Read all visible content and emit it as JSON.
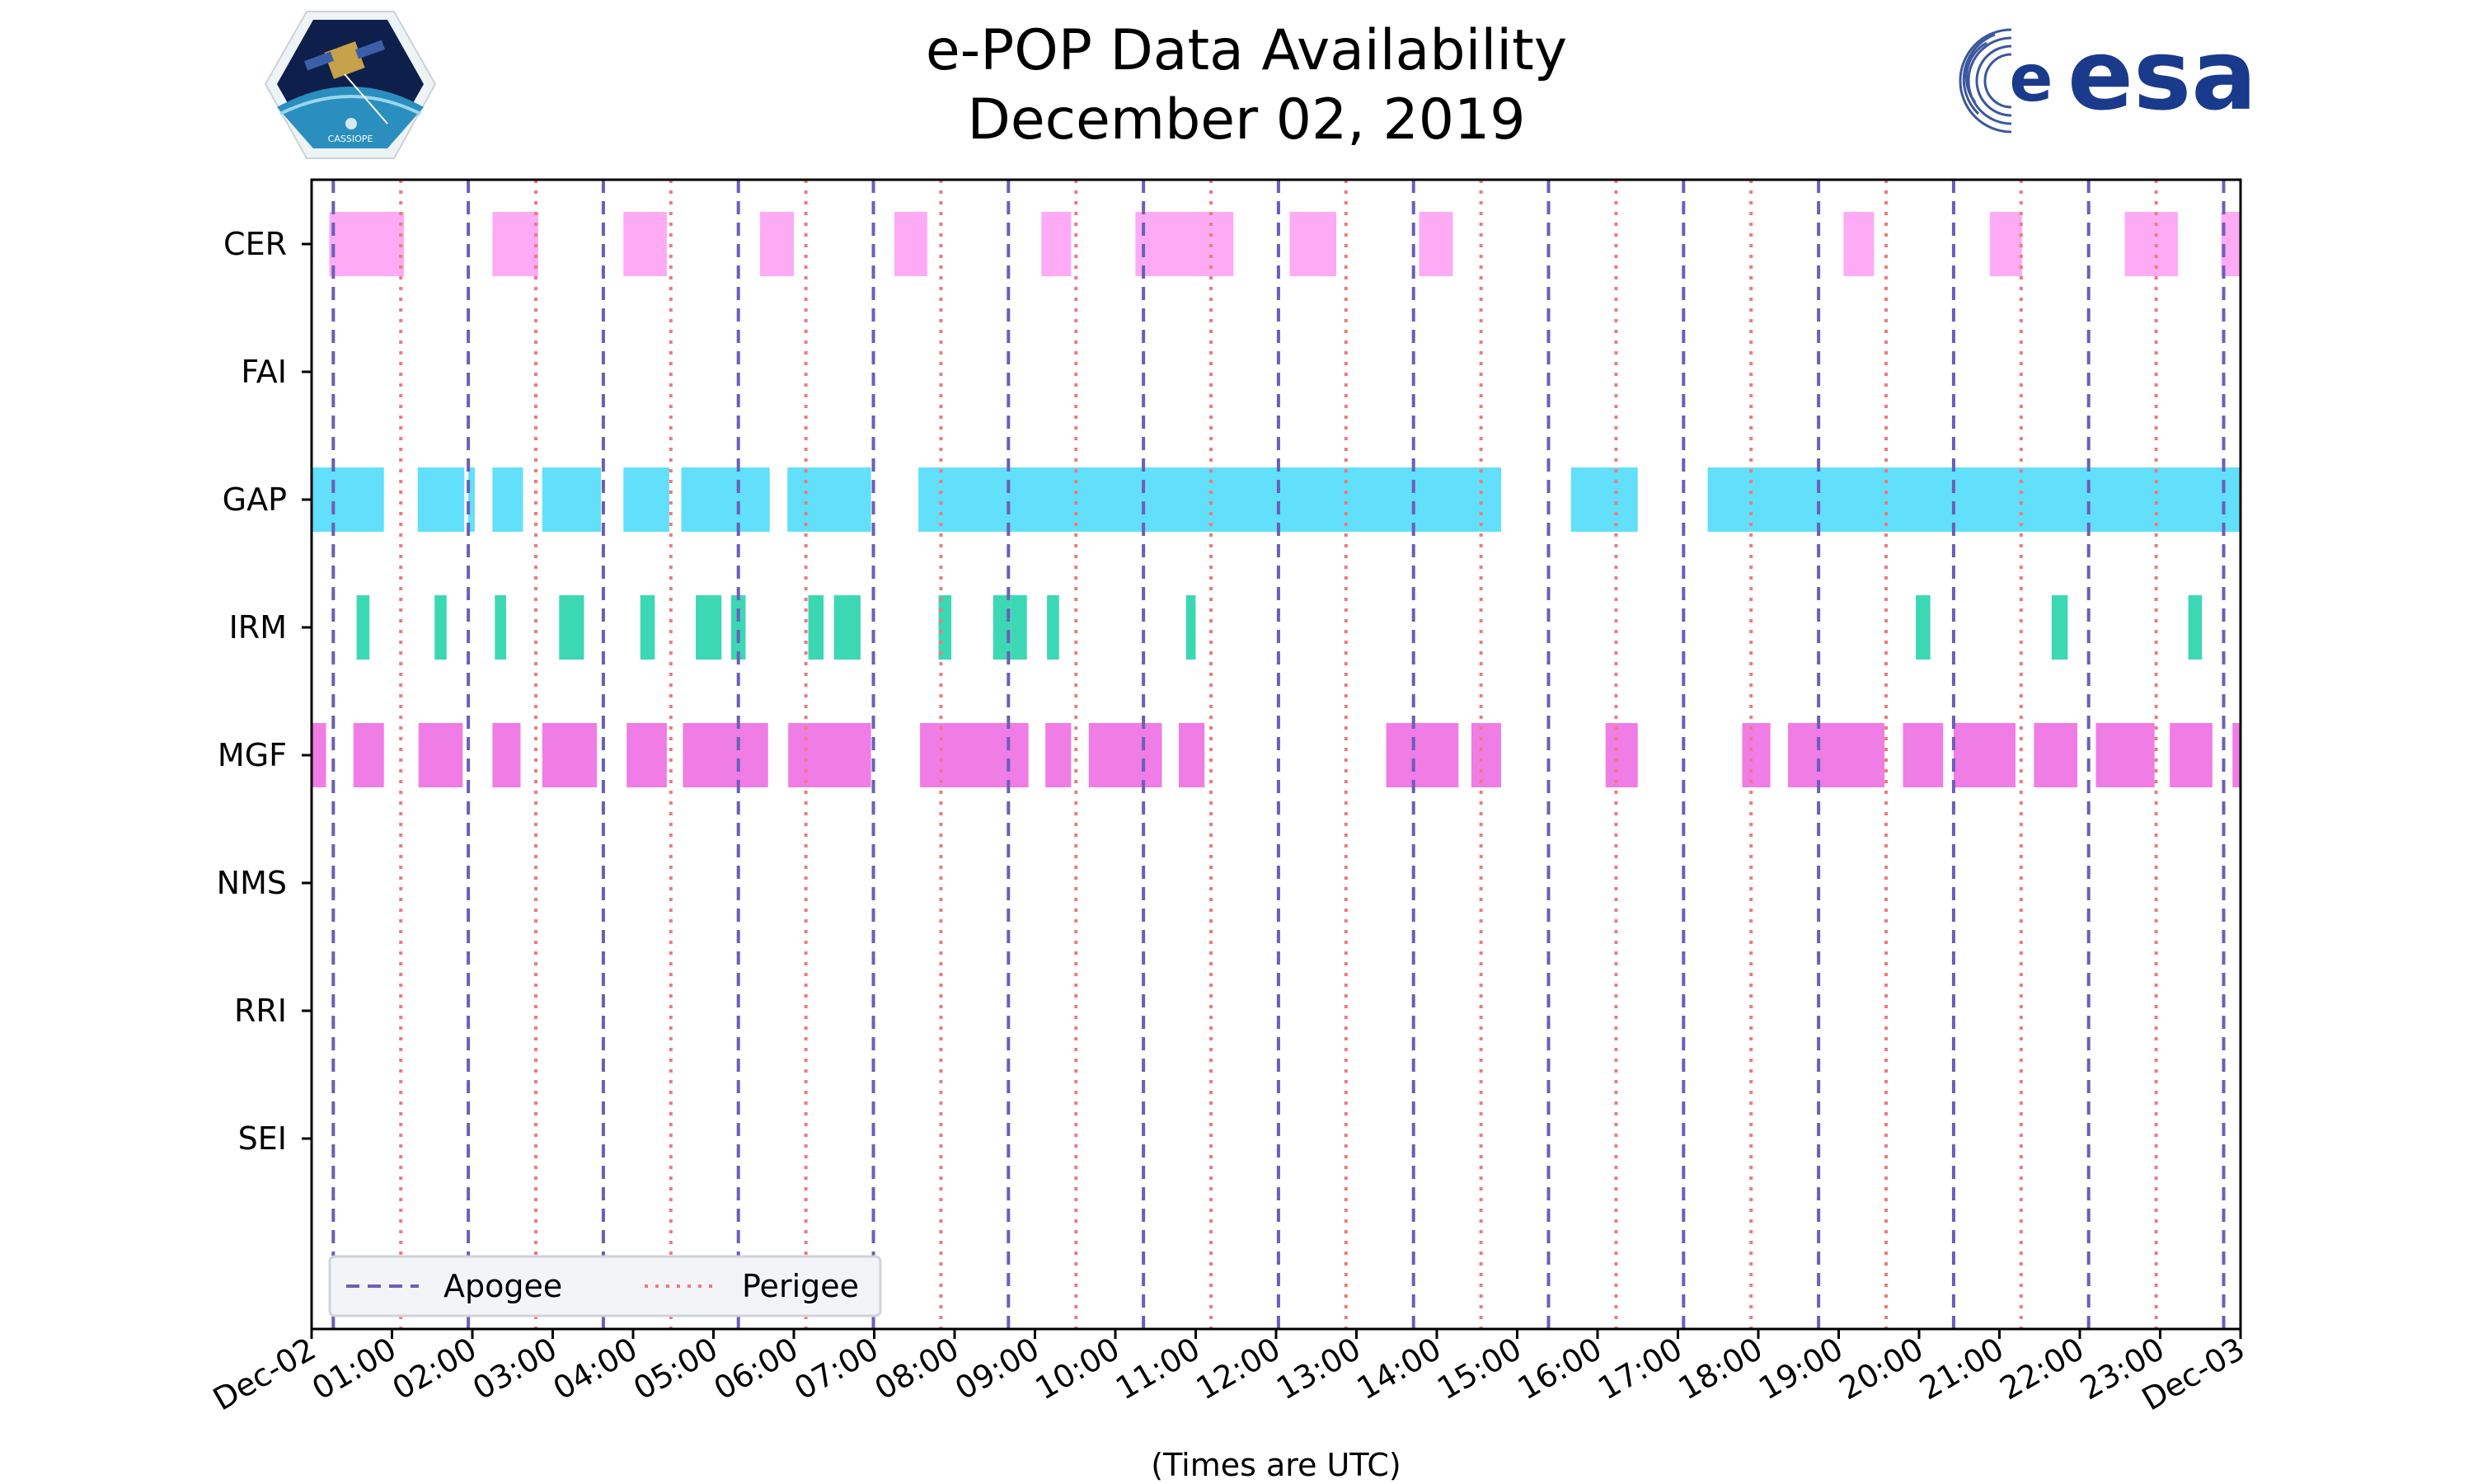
{
  "chart_data": {
    "type": "timeline",
    "title": "e-POP Data Availability",
    "subtitle": "December 02, 2019",
    "xlabel": "(Times are UTC)",
    "x_unit": "hours UTC",
    "xlim": [
      0,
      24
    ],
    "x_tick_labels": [
      "Dec-02",
      "01:00",
      "02:00",
      "03:00",
      "04:00",
      "05:00",
      "06:00",
      "07:00",
      "08:00",
      "09:00",
      "10:00",
      "11:00",
      "12:00",
      "13:00",
      "14:00",
      "15:00",
      "16:00",
      "17:00",
      "18:00",
      "19:00",
      "20:00",
      "21:00",
      "22:00",
      "23:00",
      "Dec-03"
    ],
    "categories": [
      "CER",
      "FAI",
      "GAP",
      "IRM",
      "MGF",
      "NMS",
      "RRI",
      "SEI"
    ],
    "series": [
      {
        "name": "CER",
        "color": "#ffaaf5",
        "intervals": [
          [
            0.22,
            1.15
          ],
          [
            2.25,
            2.82
          ],
          [
            3.88,
            4.42
          ],
          [
            5.58,
            6.0
          ],
          [
            7.25,
            7.66
          ],
          [
            9.08,
            9.45
          ],
          [
            10.25,
            11.47
          ],
          [
            12.17,
            12.75
          ],
          [
            13.78,
            14.2
          ],
          [
            19.06,
            19.44
          ],
          [
            20.88,
            21.28
          ],
          [
            22.56,
            23.22
          ],
          [
            23.76,
            24.0
          ]
        ]
      },
      {
        "name": "FAI",
        "color": "#dddddd",
        "intervals": []
      },
      {
        "name": "GAP",
        "color": "#62dffa",
        "intervals": [
          [
            0.0,
            0.9
          ],
          [
            1.32,
            1.9
          ],
          [
            1.95,
            2.03
          ],
          [
            2.25,
            2.63
          ],
          [
            2.87,
            3.6
          ],
          [
            3.88,
            4.45
          ],
          [
            4.6,
            5.7
          ],
          [
            5.92,
            6.96
          ],
          [
            7.55,
            14.8
          ],
          [
            15.67,
            16.5
          ],
          [
            17.37,
            24.0
          ]
        ]
      },
      {
        "name": "IRM",
        "color": "#3cd8b3",
        "intervals": [
          [
            0.56,
            0.72
          ],
          [
            1.53,
            1.68
          ],
          [
            2.28,
            2.42
          ],
          [
            3.08,
            3.39
          ],
          [
            4.09,
            4.27
          ],
          [
            4.78,
            5.1
          ],
          [
            5.22,
            5.4
          ],
          [
            6.18,
            6.37
          ],
          [
            6.5,
            6.83
          ],
          [
            7.8,
            7.96
          ],
          [
            8.48,
            8.7
          ],
          [
            8.7,
            8.9
          ],
          [
            9.15,
            9.3
          ],
          [
            10.88,
            11.0
          ],
          [
            19.96,
            20.14
          ],
          [
            21.65,
            21.85
          ],
          [
            23.35,
            23.52
          ]
        ]
      },
      {
        "name": "MGF",
        "color": "#f07ce6",
        "intervals": [
          [
            0.0,
            0.18
          ],
          [
            0.52,
            0.9
          ],
          [
            1.33,
            1.88
          ],
          [
            2.25,
            2.6
          ],
          [
            2.87,
            3.55
          ],
          [
            3.92,
            4.42
          ],
          [
            4.62,
            5.68
          ],
          [
            5.93,
            6.96
          ],
          [
            7.57,
            8.92
          ],
          [
            9.13,
            9.45
          ],
          [
            9.67,
            10.58
          ],
          [
            10.79,
            11.11
          ],
          [
            13.37,
            14.27
          ],
          [
            14.43,
            14.8
          ],
          [
            16.1,
            16.5
          ],
          [
            17.8,
            18.15
          ],
          [
            18.37,
            19.57
          ],
          [
            19.8,
            20.3
          ],
          [
            20.43,
            21.2
          ],
          [
            21.43,
            21.97
          ],
          [
            22.2,
            22.93
          ],
          [
            23.12,
            23.65
          ],
          [
            23.9,
            24.0
          ]
        ]
      },
      {
        "name": "NMS",
        "color": "#dddddd",
        "intervals": []
      },
      {
        "name": "RRI",
        "color": "#dddddd",
        "intervals": []
      },
      {
        "name": "SEI",
        "color": "#dddddd",
        "intervals": []
      }
    ],
    "reference_lines": [
      {
        "name": "Apogee",
        "style": "dashed",
        "color": "#6a5fb8",
        "x": [
          0.27,
          1.95,
          3.63,
          5.31,
          6.99,
          8.67,
          10.35,
          12.03,
          13.71,
          15.39,
          17.07,
          18.75,
          20.43,
          22.11,
          23.79
        ]
      },
      {
        "name": "Perigee",
        "style": "dotted",
        "color": "#f07a7a",
        "x": [
          1.11,
          2.79,
          4.47,
          6.15,
          7.83,
          9.51,
          11.19,
          12.87,
          14.55,
          16.23,
          17.91,
          19.59,
          21.27,
          22.95
        ]
      }
    ],
    "legend": {
      "placement": "lower-left",
      "entries": [
        "Apogee",
        "Perigee"
      ]
    }
  },
  "logos": {
    "cassiope_text": "CASSIOPE",
    "esa_text": "esa"
  }
}
